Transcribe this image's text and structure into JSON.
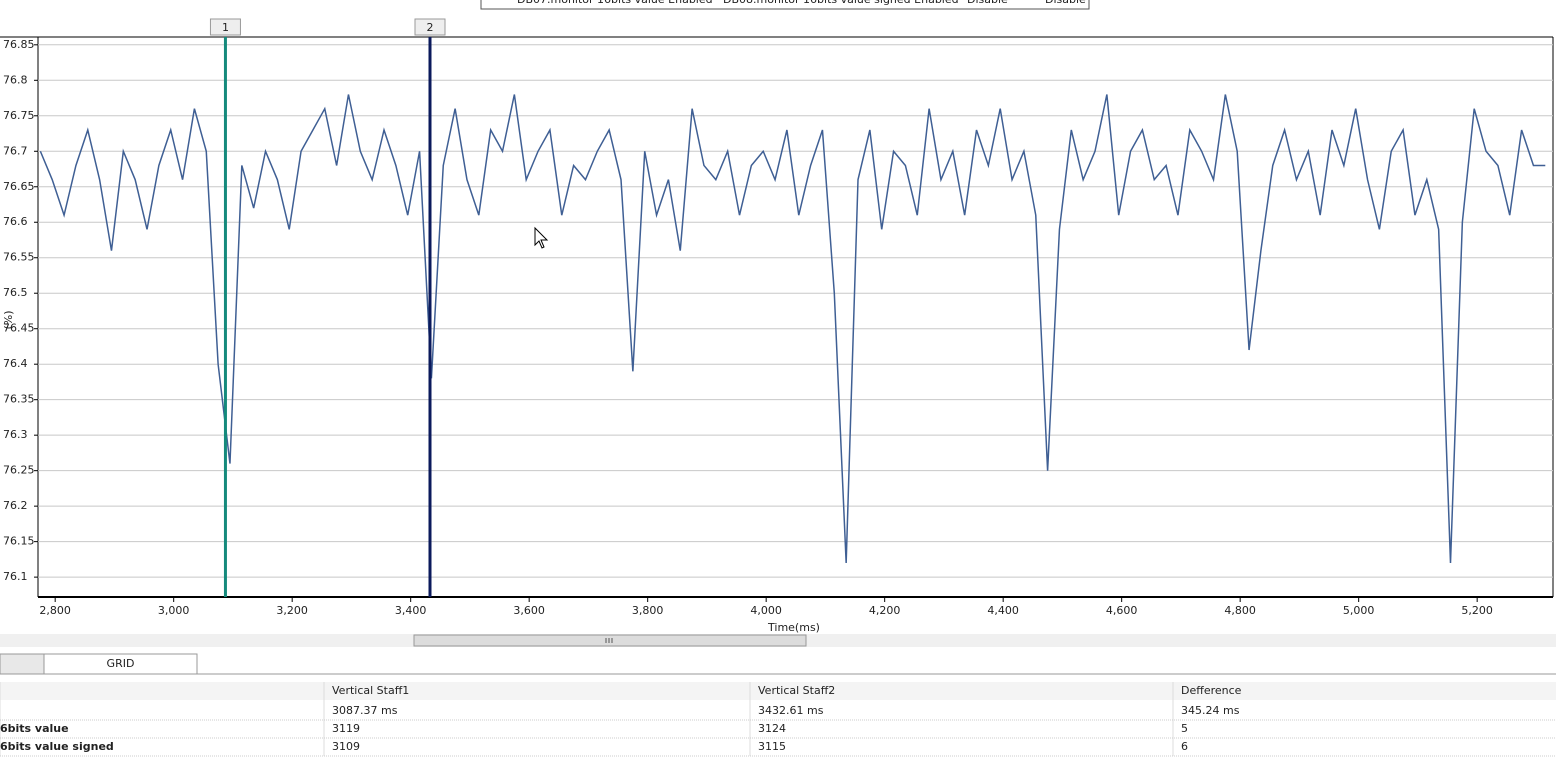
{
  "legend": [
    "DB07.monitor 16bits value Enabled",
    "DB08.monitor 16bits value signed Enabled",
    "Disable",
    "Disable"
  ],
  "chart_data": {
    "type": "line",
    "x_label": "Time(ms)",
    "y_label": "(%)",
    "xlim": [
      2771,
      5328
    ],
    "ylim": [
      76.072,
      76.861
    ],
    "xticks": [
      {
        "value": 2800,
        "label": "2,800"
      },
      {
        "value": 3000,
        "label": "3,000"
      },
      {
        "value": 3200,
        "label": "3,200"
      },
      {
        "value": 3400,
        "label": "3,400"
      },
      {
        "value": 3600,
        "label": "3,600"
      },
      {
        "value": 3800,
        "label": "3,800"
      },
      {
        "value": 4000,
        "label": "4,000"
      },
      {
        "value": 4200,
        "label": "4,200"
      },
      {
        "value": 4400,
        "label": "4,400"
      },
      {
        "value": 4600,
        "label": "4,600"
      },
      {
        "value": 4800,
        "label": "4,800"
      },
      {
        "value": 5000,
        "label": "5,000"
      },
      {
        "value": 5200,
        "label": "5,200"
      }
    ],
    "yticks": [
      76.1,
      76.15,
      76.2,
      76.25,
      76.3,
      76.35,
      76.4,
      76.45,
      76.5,
      76.55,
      76.6,
      76.65,
      76.7,
      76.75,
      76.8,
      76.85
    ],
    "grid": true,
    "x": [
      2775,
      2795,
      2815,
      2835,
      2855,
      2875,
      2895,
      2915,
      2935,
      2955,
      2975,
      2995,
      3015,
      3035,
      3055,
      3075,
      3095,
      3115,
      3135,
      3155,
      3175,
      3195,
      3215,
      3235,
      3255,
      3275,
      3295,
      3315,
      3335,
      3355,
      3375,
      3395,
      3415,
      3435,
      3455,
      3475,
      3495,
      3515,
      3535,
      3555,
      3575,
      3595,
      3615,
      3635,
      3655,
      3675,
      3695,
      3715,
      3735,
      3755,
      3775,
      3795,
      3815,
      3835,
      3855,
      3875,
      3895,
      3915,
      3935,
      3955,
      3975,
      3995,
      4015,
      4035,
      4055,
      4075,
      4095,
      4115,
      4135,
      4155,
      4175,
      4195,
      4215,
      4235,
      4255,
      4275,
      4295,
      4315,
      4335,
      4355,
      4375,
      4395,
      4415,
      4435,
      4455,
      4475,
      4495,
      4515,
      4535,
      4555,
      4575,
      4595,
      4615,
      4635,
      4655,
      4675,
      4695,
      4715,
      4735,
      4755,
      4775,
      4795,
      4815,
      4835,
      4855,
      4875,
      4895,
      4915,
      4935,
      4955,
      4975,
      4995,
      5015,
      5035,
      5055,
      5075,
      5095,
      5115,
      5135,
      5155,
      5175,
      5195,
      5215,
      5235,
      5255,
      5275,
      5295,
      5315
    ],
    "series": [
      {
        "color": "#3f5f94",
        "values": [
          76.7,
          76.66,
          76.61,
          76.68,
          76.73,
          76.66,
          76.56,
          76.7,
          76.66,
          76.59,
          76.68,
          76.73,
          76.66,
          76.76,
          76.7,
          76.4,
          76.26,
          76.68,
          76.62,
          76.7,
          76.66,
          76.59,
          76.7,
          76.73,
          76.76,
          76.68,
          76.78,
          76.7,
          76.66,
          76.73,
          76.68,
          76.61,
          76.7,
          76.38,
          76.68,
          76.76,
          76.66,
          76.61,
          76.73,
          76.7,
          76.78,
          76.66,
          76.7,
          76.73,
          76.61,
          76.68,
          76.66,
          76.7,
          76.73,
          76.66,
          76.39,
          76.7,
          76.61,
          76.66,
          76.56,
          76.76,
          76.68,
          76.66,
          76.7,
          76.61,
          76.68,
          76.7,
          76.66,
          76.73,
          76.61,
          76.68,
          76.73,
          76.5,
          76.12,
          76.66,
          76.73,
          76.59,
          76.7,
          76.68,
          76.61,
          76.76,
          76.66,
          76.7,
          76.61,
          76.73,
          76.68,
          76.76,
          76.66,
          76.7,
          76.61,
          76.25,
          76.59,
          76.73,
          76.66,
          76.7,
          76.78,
          76.61,
          76.7,
          76.73,
          76.66,
          76.68,
          76.61,
          76.73,
          76.7,
          76.66,
          76.78,
          76.7,
          76.42,
          76.56,
          76.68,
          76.73,
          76.66,
          76.7,
          76.61,
          76.73,
          76.68,
          76.76,
          76.66,
          76.59,
          76.7,
          76.73,
          76.61,
          76.66,
          76.59,
          76.12,
          76.6,
          76.76,
          76.7,
          76.68,
          76.61,
          76.73,
          76.68,
          76.68
        ]
      }
    ],
    "cursors": [
      {
        "label": "1",
        "x": 3087.37,
        "color": "#158a7c"
      },
      {
        "label": "2",
        "x": 3432.61,
        "color": "#0b1a5c"
      }
    ]
  },
  "tabs": [
    "",
    "GRID"
  ],
  "table": {
    "header": [
      "",
      "Vertical Staff1",
      "Vertical Staff2",
      "Defference"
    ],
    "rows": [
      [
        "",
        "3087.37 ms",
        "3432.61 ms",
        "345.24 ms"
      ],
      [
        "6bits value",
        "3119",
        "3124",
        "5"
      ],
      [
        "6bits value signed",
        "3109",
        "3115",
        "6"
      ]
    ],
    "row_colors": [
      "#222222",
      "#3b5a8c",
      "#e0902a"
    ]
  }
}
